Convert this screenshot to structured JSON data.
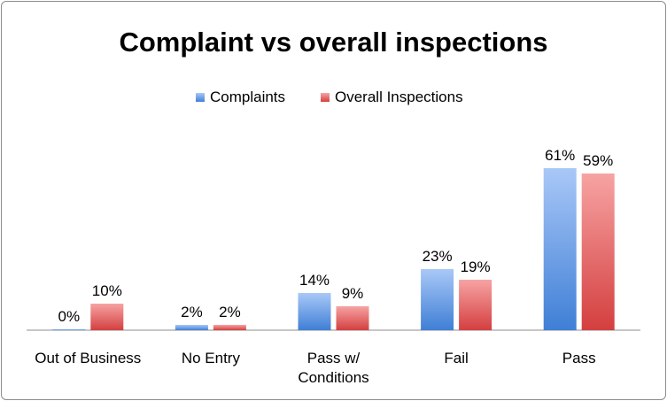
{
  "chart_data": {
    "type": "bar",
    "title": "Complaint vs overall inspections",
    "xlabel": "",
    "ylabel": "",
    "ylim": [
      0,
      65
    ],
    "grid": false,
    "legend_position": "top",
    "categories": [
      "Out of Business",
      "No Entry",
      "Pass w/ Conditions",
      "Fail",
      "Pass"
    ],
    "category_lines": [
      [
        "Out of Business"
      ],
      [
        "No Entry"
      ],
      [
        "Pass w/",
        "Conditions"
      ],
      [
        "Fail"
      ],
      [
        "Pass"
      ]
    ],
    "series": [
      {
        "name": "Complaints",
        "values": [
          0,
          2,
          14,
          23,
          61
        ],
        "labels": [
          "0%",
          "2%",
          "14%",
          "23%",
          "61%"
        ],
        "color_top": "#a9c8f7",
        "color_bottom": "#3f7fd6"
      },
      {
        "name": "Overall Inspections",
        "values": [
          10,
          2,
          9,
          19,
          59
        ],
        "labels": [
          "10%",
          "2%",
          "9%",
          "19%",
          "59%"
        ],
        "color_top": "#f7a3a3",
        "color_bottom": "#d43f3f"
      }
    ]
  }
}
